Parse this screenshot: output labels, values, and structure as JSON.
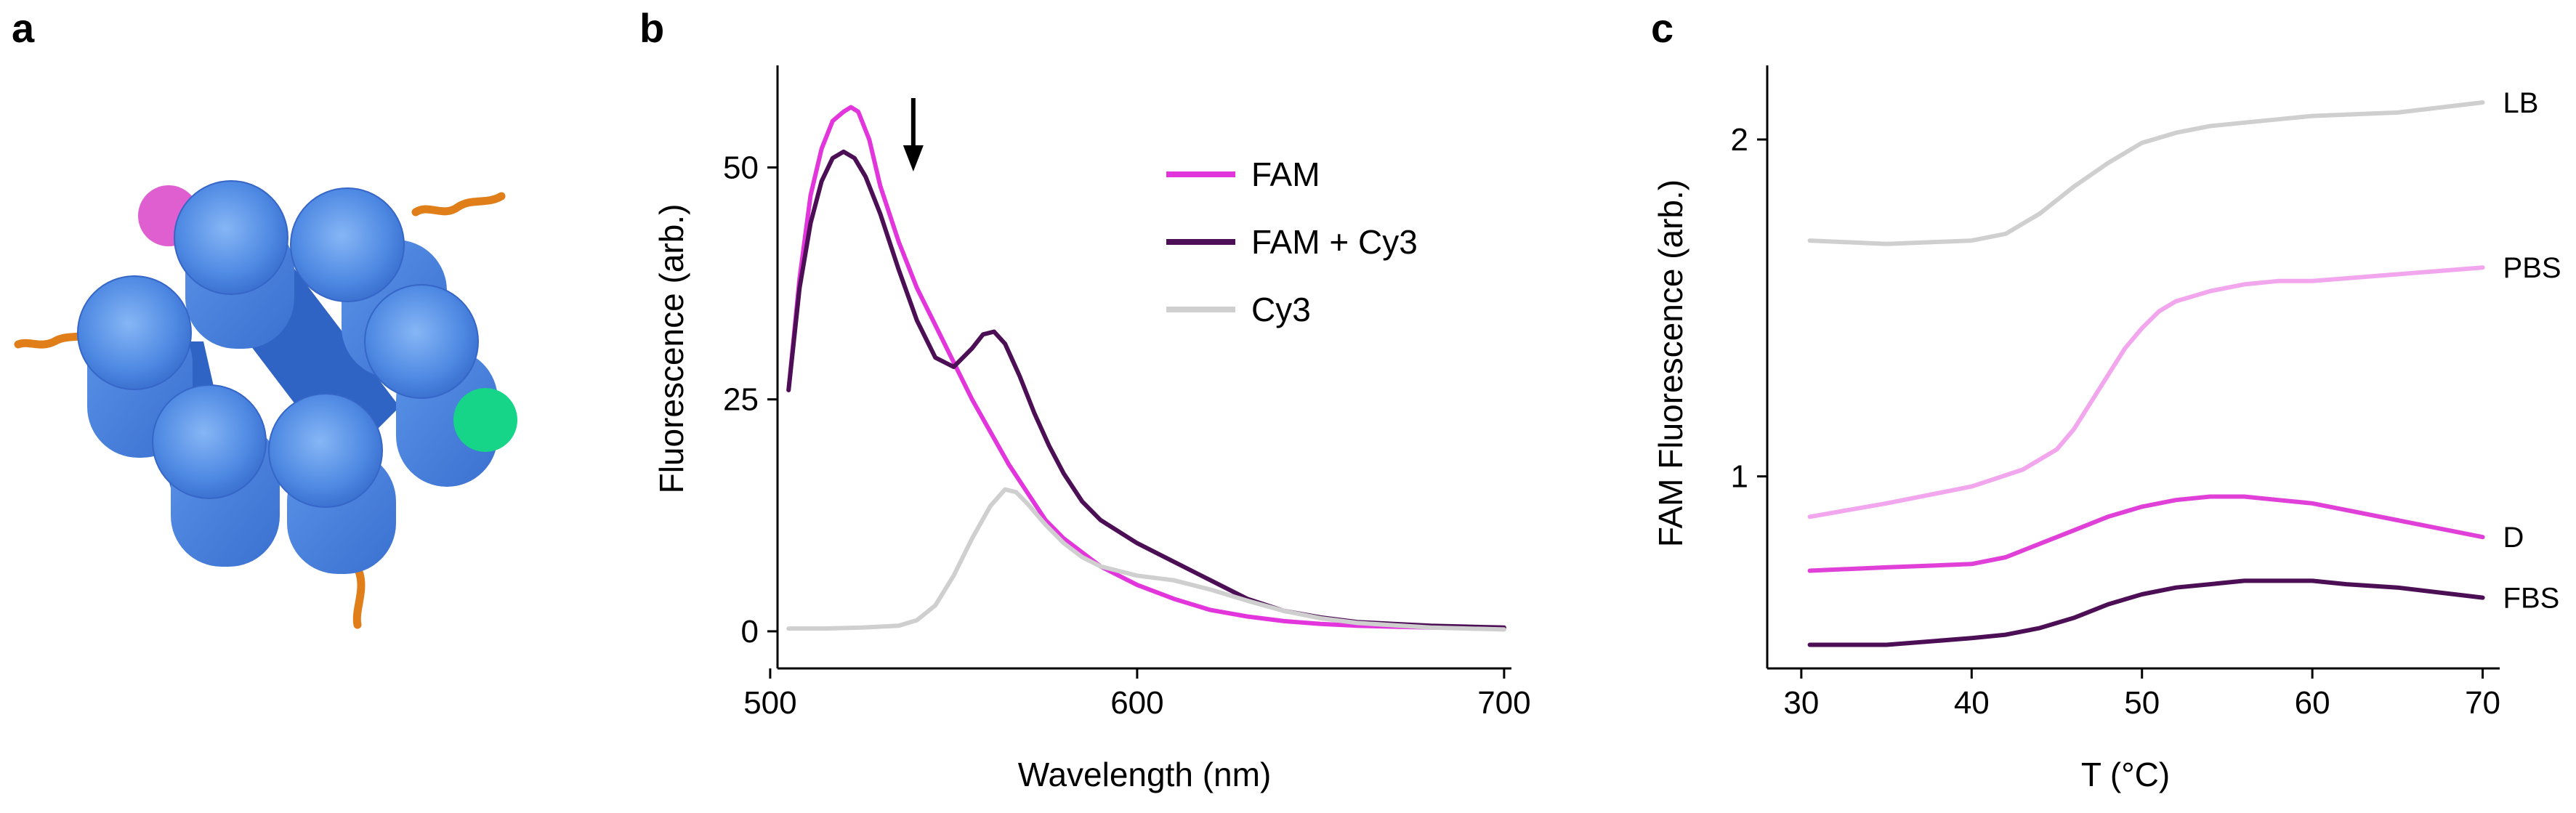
{
  "panels": {
    "a": {
      "letter": "a"
    },
    "b": {
      "letter": "b"
    },
    "c": {
      "letter": "c"
    }
  },
  "colors": {
    "tube": "#4a86e2",
    "tube_light": "#7aacf2",
    "tube_dark": "#2d5fbd",
    "fam_dye": "#e05fd0",
    "cy3_dye": "#16d488",
    "linker": "#e07e1a",
    "fam": "#e236dc",
    "fam_cy3": "#4c0f55",
    "cy3": "#cfcfcf",
    "LB": "#cfcfcf",
    "PBS": "#f2a6ee",
    "D": "#e040d8",
    "FBS": "#4c0f55"
  },
  "chart_data": [
    {
      "id": "b",
      "type": "line",
      "xlabel": "Wavelength (nm)",
      "ylabel": "Fluorescence (arb.)",
      "xlim": [
        502,
        702
      ],
      "ylim": [
        -4,
        61
      ],
      "xticks": [
        500,
        600,
        700
      ],
      "yticks": [
        0,
        25,
        50
      ],
      "arrow_at_x": 539,
      "legend_position": "top-right",
      "series": [
        {
          "name": "FAM",
          "color_key": "fam",
          "x": [
            505,
            508,
            511,
            514,
            517,
            520,
            522,
            524,
            527,
            530,
            535,
            540,
            545,
            550,
            555,
            560,
            565,
            570,
            575,
            580,
            590,
            600,
            610,
            620,
            630,
            640,
            650,
            660,
            680,
            700
          ],
          "y": [
            26,
            38,
            47,
            52,
            55,
            56,
            56.5,
            56,
            53,
            48,
            42,
            37,
            33,
            29,
            25,
            21.5,
            18,
            15,
            12,
            10,
            7,
            5,
            3.5,
            2.3,
            1.6,
            1.1,
            0.8,
            0.6,
            0.4,
            0.3
          ]
        },
        {
          "name": "FAM + Cy3",
          "color_key": "fam_cy3",
          "x": [
            505,
            508,
            511,
            514,
            517,
            520,
            523,
            526,
            530,
            535,
            540,
            545,
            550,
            555,
            558,
            561,
            564,
            568,
            572,
            576,
            580,
            585,
            590,
            600,
            610,
            620,
            630,
            640,
            650,
            660,
            680,
            700
          ],
          "y": [
            26,
            37,
            44,
            48.5,
            51,
            51.7,
            51,
            49,
            45,
            39,
            33.5,
            29.5,
            28.5,
            30.5,
            32,
            32.3,
            31,
            27.5,
            23.5,
            20,
            17,
            14,
            12,
            9.5,
            7.5,
            5.5,
            3.5,
            2.2,
            1.5,
            1,
            0.6,
            0.4
          ]
        },
        {
          "name": "Cy3",
          "color_key": "cy3",
          "x": [
            505,
            515,
            525,
            535,
            540,
            545,
            550,
            555,
            560,
            564,
            567,
            570,
            575,
            580,
            585,
            590,
            600,
            610,
            620,
            630,
            640,
            650,
            660,
            680,
            700
          ],
          "y": [
            0.3,
            0.3,
            0.4,
            0.6,
            1.2,
            2.8,
            6,
            10,
            13.5,
            15.3,
            15,
            13.8,
            11.5,
            9.5,
            8,
            7,
            6,
            5.5,
            4.5,
            3.3,
            2.2,
            1.4,
            0.9,
            0.4,
            0.2
          ]
        }
      ]
    },
    {
      "id": "c",
      "type": "line",
      "xlabel": "T (°C)",
      "ylabel": "FAM Fluorescence (arb.)",
      "xlim": [
        28,
        71
      ],
      "ylim": [
        0.43,
        2.22
      ],
      "xticks": [
        30,
        40,
        50,
        60,
        70
      ],
      "yticks": [
        1,
        2
      ],
      "series": [
        {
          "name": "LB",
          "color_key": "LB",
          "x": [
            30.5,
            35,
            40,
            42,
            44,
            46,
            48,
            50,
            52,
            54,
            56,
            58,
            60,
            65,
            70
          ],
          "y": [
            1.7,
            1.69,
            1.7,
            1.72,
            1.78,
            1.86,
            1.93,
            1.99,
            2.02,
            2.04,
            2.05,
            2.06,
            2.07,
            2.08,
            2.11
          ]
        },
        {
          "name": "PBS",
          "color_key": "PBS",
          "x": [
            30.5,
            35,
            40,
            43,
            45,
            46,
            47,
            48,
            49,
            50,
            51,
            52,
            54,
            56,
            58,
            60,
            65,
            70
          ],
          "y": [
            0.88,
            0.92,
            0.97,
            1.02,
            1.08,
            1.14,
            1.22,
            1.3,
            1.38,
            1.44,
            1.49,
            1.52,
            1.55,
            1.57,
            1.58,
            1.58,
            1.6,
            1.62
          ]
        },
        {
          "name": "D",
          "color_key": "D",
          "x": [
            30.5,
            35,
            40,
            42,
            44,
            46,
            48,
            50,
            52,
            54,
            56,
            58,
            60,
            62,
            65,
            70
          ],
          "y": [
            0.72,
            0.73,
            0.74,
            0.76,
            0.8,
            0.84,
            0.88,
            0.91,
            0.93,
            0.94,
            0.94,
            0.93,
            0.92,
            0.9,
            0.87,
            0.82
          ]
        },
        {
          "name": "FBS",
          "color_key": "FBS",
          "x": [
            30.5,
            35,
            40,
            42,
            44,
            46,
            48,
            50,
            52,
            54,
            56,
            58,
            60,
            62,
            65,
            70
          ],
          "y": [
            0.5,
            0.5,
            0.52,
            0.53,
            0.55,
            0.58,
            0.62,
            0.65,
            0.67,
            0.68,
            0.69,
            0.69,
            0.69,
            0.68,
            0.67,
            0.64
          ]
        }
      ]
    }
  ]
}
